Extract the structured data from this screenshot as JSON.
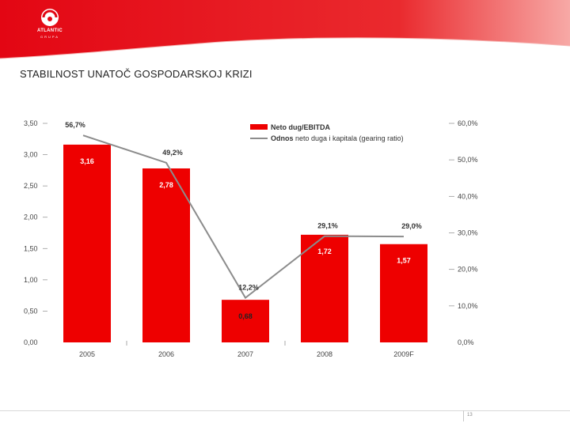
{
  "header": {
    "logo_text": "ATLANTIC",
    "logo_sub": "GRUPA"
  },
  "slide": {
    "title": "STABILNOST UNATOČ GOSPODARSKOJ KRIZI",
    "page_number": "13"
  },
  "colors": {
    "bar": "#ee0000",
    "line": "#8c8c8c",
    "accent": "#e30613"
  },
  "chart_data": {
    "type": "bar",
    "categories": [
      "2005",
      "2006",
      "2007",
      "2008",
      "2009F"
    ],
    "legend_position": "top-center",
    "series": [
      {
        "name": "Neto dug/EBITDA",
        "type": "bar",
        "axis": "left",
        "values": [
          3.16,
          2.78,
          0.68,
          1.72,
          1.57
        ],
        "labels": [
          "3,16",
          "2,78",
          "0,68",
          "1,72",
          "1,57"
        ]
      },
      {
        "name_bold": "Odnos",
        "name": "neto duga i kapitala (gearing ratio)",
        "type": "line",
        "axis": "right",
        "values": [
          56.7,
          49.2,
          12.2,
          29.1,
          29.0
        ],
        "labels": [
          "56,7%",
          "49,2%",
          "12,2%",
          "29,1%",
          "29,0%"
        ]
      }
    ],
    "y_left": {
      "min": 0,
      "max": 3.5,
      "ticks": [
        "0,00",
        "0,50",
        "1,00",
        "1,50",
        "2,00",
        "2,50",
        "3,00",
        "3,50"
      ]
    },
    "y_right": {
      "min": 0,
      "max": 60,
      "ticks": [
        "0,0%",
        "10,0%",
        "20,0%",
        "30,0%",
        "40,0%",
        "50,0%",
        "60,0%"
      ]
    },
    "grid": false
  }
}
